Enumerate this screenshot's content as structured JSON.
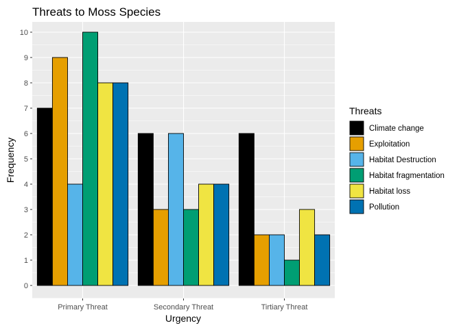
{
  "chart_data": {
    "type": "bar",
    "title": "Threats to Moss Species",
    "xlabel": "Urgency",
    "ylabel": "Frequency",
    "categories": [
      "Primary Threat",
      "Secondary Threat",
      "Tirtiary Threat"
    ],
    "ylim": [
      0,
      10.5
    ],
    "yticks": [
      0,
      1,
      2,
      3,
      4,
      5,
      6,
      7,
      8,
      9,
      10
    ],
    "grid": true,
    "legend": {
      "title": "Threats",
      "position": "right"
    },
    "series": [
      {
        "name": "Climate change",
        "color": "#000000",
        "values": [
          7,
          6,
          6
        ]
      },
      {
        "name": "Exploitation",
        "color": "#E69F00",
        "values": [
          9,
          3,
          2
        ]
      },
      {
        "name": "Habitat Destruction",
        "color": "#56B4E9",
        "values": [
          4,
          6,
          2
        ]
      },
      {
        "name": "Habitat fragmentation",
        "color": "#009E73",
        "values": [
          10,
          3,
          1
        ]
      },
      {
        "name": "Habitat loss",
        "color": "#F0E442",
        "values": [
          8,
          4,
          3
        ]
      },
      {
        "name": "Pollution",
        "color": "#0072B2",
        "values": [
          8,
          4,
          2
        ]
      }
    ]
  }
}
